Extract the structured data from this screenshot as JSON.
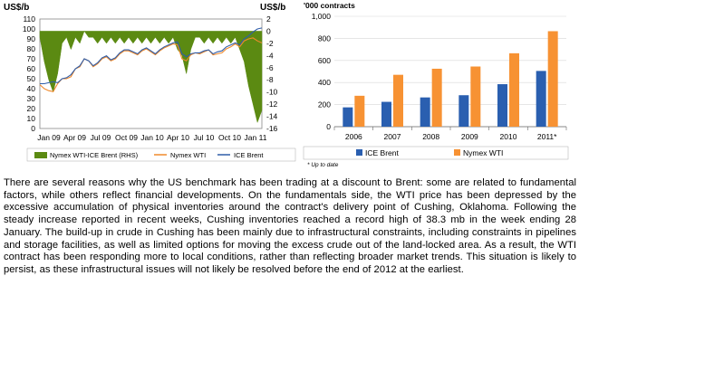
{
  "chart_data": [
    {
      "type": "area+line",
      "left_axis_unit": "US$/b",
      "right_axis_unit": "US$/b",
      "left_ylim": [
        0,
        110
      ],
      "left_ticks": [
        "0",
        "10",
        "20",
        "30",
        "40",
        "50",
        "60",
        "70",
        "80",
        "90",
        "100",
        "110"
      ],
      "right_ylim": [
        -16,
        2
      ],
      "right_ticks": [
        "2",
        "0",
        "-2",
        "-4",
        "-6",
        "-8",
        "-10",
        "-12",
        "-14",
        "-16"
      ],
      "x_ticks": [
        "Jan 09",
        "Apr 09",
        "Jul 09",
        "Oct 09",
        "Jan 10",
        "Apr 10",
        "Jul 10",
        "Oct 10",
        "Jan 11"
      ],
      "series": [
        {
          "name": "Nymex WTI-ICE Brent (RHS)",
          "axis": "right",
          "color": "#5b8a12",
          "x": [
            "2009-01",
            "2009-01",
            "2009-02",
            "2009-02",
            "2009-03",
            "2009-03",
            "2009-04",
            "2009-04",
            "2009-05",
            "2009-05",
            "2009-06",
            "2009-06",
            "2009-07",
            "2009-07",
            "2009-08",
            "2009-08",
            "2009-09",
            "2009-09",
            "2009-10",
            "2009-10",
            "2009-11",
            "2009-11",
            "2009-12",
            "2009-12",
            "2010-01",
            "2010-01",
            "2010-02",
            "2010-02",
            "2010-03",
            "2010-03",
            "2010-04",
            "2010-04",
            "2010-05",
            "2010-05",
            "2010-06",
            "2010-06",
            "2010-07",
            "2010-07",
            "2010-08",
            "2010-08",
            "2010-09",
            "2010-09",
            "2010-10",
            "2010-10",
            "2010-11",
            "2010-11",
            "2010-12",
            "2010-12",
            "2011-01",
            "2011-01",
            "2011-02"
          ],
          "values": [
            -1,
            -5,
            -8,
            -10,
            -7,
            -2,
            -1,
            -3,
            -1,
            -2,
            0,
            -1,
            -1,
            -2,
            -1,
            -2,
            -1,
            -2,
            -1,
            -2,
            -1,
            -2,
            -1,
            -2,
            -1,
            -2,
            -1,
            -2,
            -1,
            -2,
            -1,
            -3,
            -4,
            -7,
            -3,
            -1,
            -1,
            -2,
            -1,
            -2,
            -1,
            -2,
            -1,
            -2,
            -1,
            -3,
            -5,
            -9,
            -12,
            -15,
            -13
          ]
        },
        {
          "name": "Nymex WTI",
          "axis": "left",
          "color": "#f08a2c",
          "x": [
            "2009-01",
            "2009-01",
            "2009-02",
            "2009-02",
            "2009-03",
            "2009-03",
            "2009-04",
            "2009-04",
            "2009-05",
            "2009-05",
            "2009-06",
            "2009-06",
            "2009-07",
            "2009-07",
            "2009-08",
            "2009-08",
            "2009-09",
            "2009-09",
            "2009-10",
            "2009-10",
            "2009-11",
            "2009-11",
            "2009-12",
            "2009-12",
            "2010-01",
            "2010-01",
            "2010-02",
            "2010-02",
            "2010-03",
            "2010-03",
            "2010-04",
            "2010-04",
            "2010-05",
            "2010-05",
            "2010-06",
            "2010-06",
            "2010-07",
            "2010-07",
            "2010-08",
            "2010-08",
            "2010-09",
            "2010-09",
            "2010-10",
            "2010-10",
            "2010-11",
            "2010-11",
            "2010-12",
            "2010-12",
            "2011-01",
            "2011-01",
            "2011-02"
          ],
          "values": [
            44,
            40,
            38,
            37,
            45,
            50,
            50,
            52,
            60,
            62,
            70,
            68,
            62,
            65,
            70,
            72,
            68,
            70,
            75,
            78,
            78,
            76,
            74,
            78,
            80,
            77,
            74,
            78,
            81,
            83,
            85,
            84,
            70,
            68,
            74,
            76,
            75,
            77,
            79,
            74,
            75,
            76,
            80,
            82,
            85,
            82,
            88,
            90,
            91,
            88,
            86
          ]
        },
        {
          "name": "ICE Brent",
          "axis": "left",
          "color": "#2f5da8",
          "x": [
            "2009-01",
            "2009-01",
            "2009-02",
            "2009-02",
            "2009-03",
            "2009-03",
            "2009-04",
            "2009-04",
            "2009-05",
            "2009-05",
            "2009-06",
            "2009-06",
            "2009-07",
            "2009-07",
            "2009-08",
            "2009-08",
            "2009-09",
            "2009-09",
            "2009-10",
            "2009-10",
            "2009-11",
            "2009-11",
            "2009-12",
            "2009-12",
            "2010-01",
            "2010-01",
            "2010-02",
            "2010-02",
            "2010-03",
            "2010-03",
            "2010-04",
            "2010-04",
            "2010-05",
            "2010-05",
            "2010-06",
            "2010-06",
            "2010-07",
            "2010-07",
            "2010-08",
            "2010-08",
            "2010-09",
            "2010-09",
            "2010-10",
            "2010-10",
            "2010-11",
            "2010-11",
            "2010-12",
            "2010-12",
            "2011-01",
            "2011-01",
            "2011-02"
          ],
          "values": [
            45,
            45,
            46,
            47,
            46,
            50,
            51,
            54,
            60,
            63,
            70,
            68,
            63,
            66,
            71,
            73,
            69,
            71,
            76,
            79,
            79,
            77,
            75,
            79,
            81,
            78,
            75,
            79,
            82,
            84,
            86,
            87,
            75,
            72,
            75,
            76,
            76,
            78,
            79,
            75,
            77,
            78,
            82,
            84,
            86,
            84,
            90,
            93,
            97,
            100,
            101
          ]
        }
      ],
      "legend": {
        "placement": "bottom"
      }
    },
    {
      "type": "bar",
      "ylabel": "'000 contracts",
      "ylim": [
        0,
        1000
      ],
      "y_ticks": [
        "0",
        "200",
        "400",
        "600",
        "800",
        "1,000"
      ],
      "categories": [
        "2006",
        "2007",
        "2008",
        "2009",
        "2010",
        "2011*"
      ],
      "series": [
        {
          "name": "ICE Brent",
          "color": "#2a5fb0",
          "values": [
            175,
            225,
            265,
            285,
            385,
            505
          ]
        },
        {
          "name": "Nymex WTI",
          "color": "#f79233",
          "values": [
            280,
            470,
            525,
            545,
            665,
            865
          ]
        }
      ],
      "legend": {
        "placement": "bottom"
      },
      "footnote": "* Up to date"
    }
  ],
  "body_text": "There are several reasons why the US benchmark has been trading at a discount to Brent: some are related to fundamental factors, while others reflect financial developments. On the fundamentals side, the WTI price has been depressed by the excessive accumulation of physical inventories around the contract's delivery point of Cushing, Oklahoma. Following the steady increase reported in recent weeks, Cushing inventories reached a record high of 38.3 mb in the week ending 28 January. The build-up in crude in Cushing has been mainly due to infrastructural constraints, including constraints in pipelines and storage facilities, as well as limited options for moving the excess crude out of the land-locked area. As a result, the WTI contract has been responding more to local conditions, rather than reflecting broader market trends. This situation is likely to persist, as these infrastructural issues will not likely be resolved before the end of 2012 at the earliest."
}
